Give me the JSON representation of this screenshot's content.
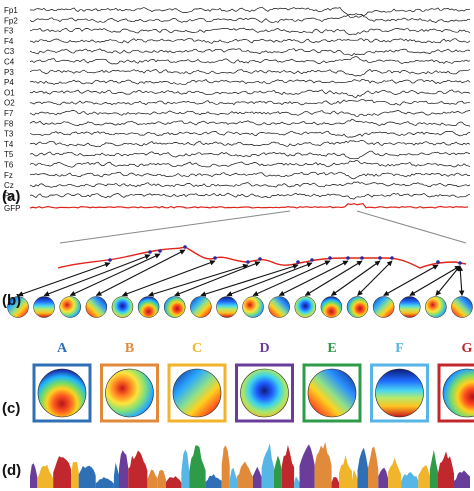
{
  "figure": {
    "panels": {
      "a": "(a)",
      "b": "(b)",
      "c": "(c)",
      "d": "(d)"
    },
    "channels": [
      "Fp1",
      "Fp2",
      "F3",
      "F4",
      "C3",
      "C4",
      "P3",
      "P4",
      "O1",
      "O2",
      "F7",
      "F8",
      "T3",
      "T4",
      "T5",
      "T6",
      "Fz",
      "Cz",
      "Pz"
    ],
    "gfp_label": "GFP",
    "colors": {
      "trace": "#111111",
      "gfp": "#e0241b",
      "peak_marker": "#2a2aa0",
      "arrow": "#111111",
      "zoom_lines": "#888888"
    },
    "peak_topomap_count": 18,
    "microstates": [
      {
        "label": "A",
        "color": "#2f6fb5",
        "pattern": "posterior-red"
      },
      {
        "label": "B",
        "color": "#e08a3a",
        "pattern": "left-red"
      },
      {
        "label": "C",
        "color": "#f0b52a",
        "pattern": "diagonal-left"
      },
      {
        "label": "D",
        "color": "#6a3d9a",
        "pattern": "central-blue"
      },
      {
        "label": "E",
        "color": "#2e9b48",
        "pattern": "diagonal-right"
      },
      {
        "label": "F",
        "color": "#58b6e6",
        "pattern": "anterior-blue"
      },
      {
        "label": "G",
        "color": "#c0282d",
        "pattern": "right-red"
      }
    ]
  }
}
